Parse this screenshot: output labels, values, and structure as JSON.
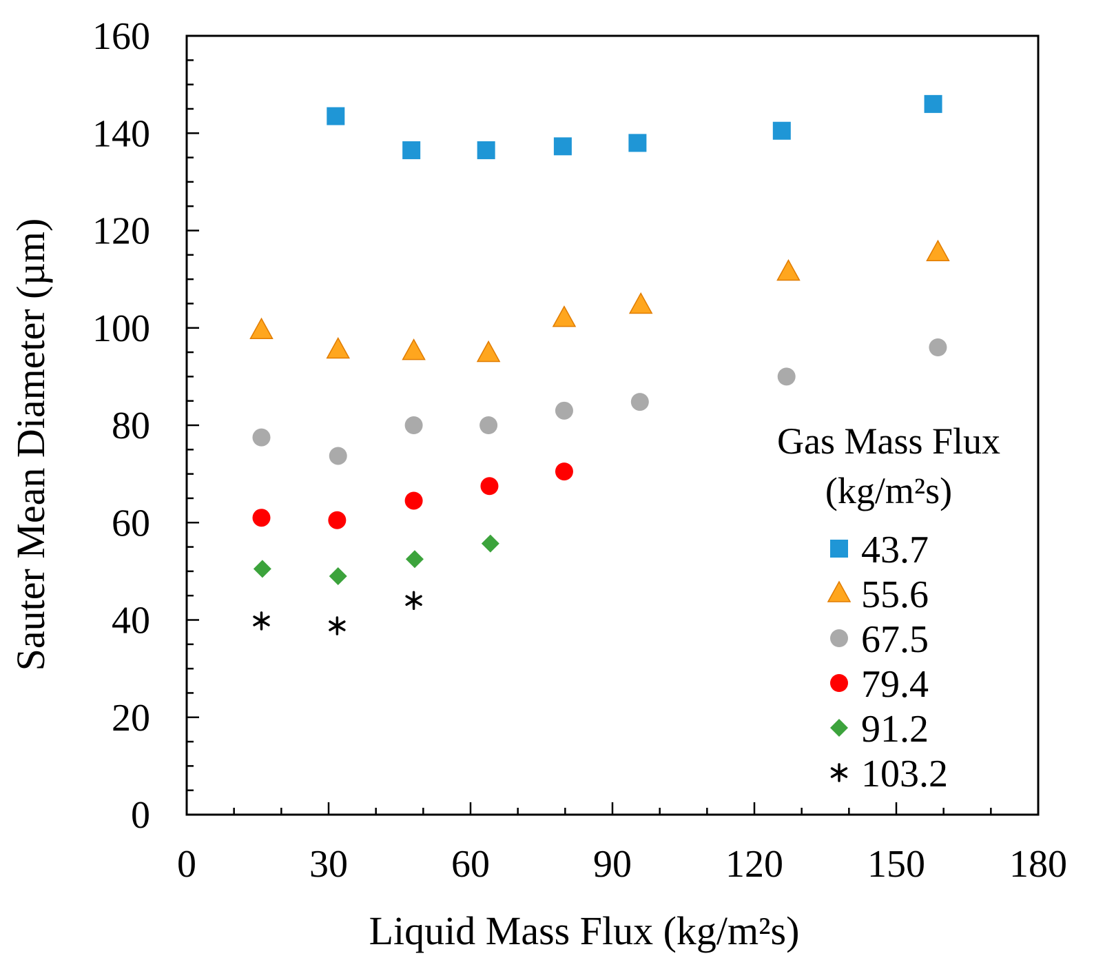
{
  "chart_data": {
    "type": "scatter",
    "title": "",
    "xlabel": "Liquid Mass Flux (kg/m²s)",
    "ylabel": "Sauter Mean Diameter (µm)",
    "xlim": [
      0,
      180
    ],
    "ylim": [
      0,
      160
    ],
    "xticks": [
      0,
      30,
      60,
      90,
      120,
      150,
      180
    ],
    "yticks": [
      0,
      20,
      40,
      60,
      80,
      100,
      120,
      140,
      160
    ],
    "grid": false,
    "legend": {
      "title_line1": "Gas Mass Flux",
      "title_line2": "(kg/m²s)",
      "placement": "right"
    },
    "series": [
      {
        "name": "43.7",
        "marker": "square",
        "color": "#1f96d6",
        "x": [
          31.5,
          47.5,
          63.3,
          79.5,
          95.3,
          125.8,
          157.8
        ],
        "y": [
          143.5,
          136.5,
          136.5,
          137.3,
          138,
          140.5,
          146
        ]
      },
      {
        "name": "55.6",
        "marker": "triangle",
        "color": "#ffa61e",
        "x": [
          15.8,
          32,
          48,
          63.8,
          79.8,
          96,
          127.2,
          158.8
        ],
        "y": [
          99.5,
          95.5,
          95.2,
          94.8,
          102,
          104.7,
          111.5,
          115.5
        ]
      },
      {
        "name": "67.5",
        "marker": "circle",
        "color": "#aaaaaa",
        "x": [
          15.8,
          32,
          48,
          63.8,
          79.8,
          95.8,
          126.8,
          158.8
        ],
        "y": [
          77.5,
          73.7,
          80,
          80,
          83,
          84.8,
          90,
          96
        ]
      },
      {
        "name": "79.4",
        "marker": "circle",
        "color": "#ff0000",
        "x": [
          15.8,
          31.8,
          48,
          64,
          79.8
        ],
        "y": [
          61,
          60.5,
          64.5,
          67.5,
          70.5
        ]
      },
      {
        "name": "91.2",
        "marker": "diamond",
        "color": "#3ca33c",
        "x": [
          16,
          32,
          48.2,
          64.2
        ],
        "y": [
          50.5,
          49,
          52.5,
          55.7
        ]
      },
      {
        "name": "103.2",
        "marker": "asterisk",
        "color": "#000000",
        "x": [
          15.8,
          31.8,
          48
        ],
        "y": [
          39.8,
          38.8,
          44
        ]
      }
    ]
  }
}
